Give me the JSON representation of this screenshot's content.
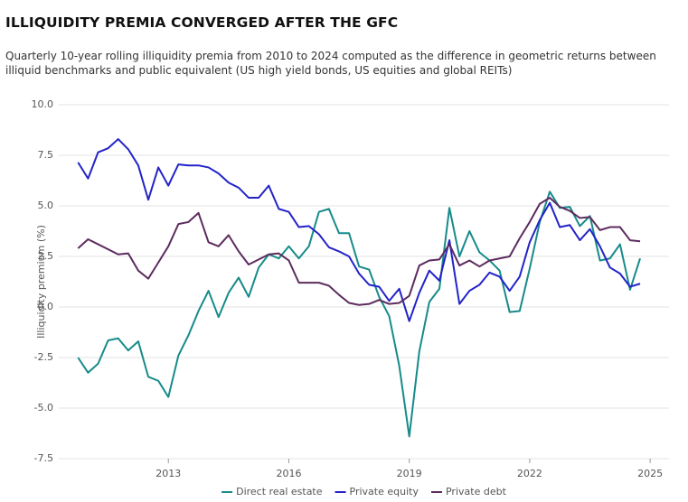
{
  "chart_data": {
    "type": "line",
    "title": "ILLIQUIDITY PREMIA CONVERGED AFTER THE GFC",
    "subtitle": "Quarterly 10-year rolling illiquidity premia from 2010 to 2024 computed as the difference in geometric returns between illiquid benchmarks and public equivalent (US high yield bonds, US equities and global REITs)",
    "y_label": "Illiquidity premium (%)",
    "x": [
      2010.75,
      2011,
      2011.25,
      2011.5,
      2011.75,
      2012,
      2012.25,
      2012.5,
      2012.75,
      2013,
      2013.25,
      2013.5,
      2013.75,
      2014,
      2014.25,
      2014.5,
      2014.75,
      2015,
      2015.25,
      2015.5,
      2015.75,
      2016,
      2016.25,
      2016.5,
      2016.75,
      2017,
      2017.25,
      2017.5,
      2017.75,
      2018,
      2018.25,
      2018.5,
      2018.75,
      2019,
      2019.25,
      2019.5,
      2019.75,
      2020,
      2020.25,
      2020.5,
      2020.75,
      2021,
      2021.25,
      2021.5,
      2021.75,
      2022,
      2022.25,
      2022.5,
      2022.75,
      2023,
      2023.25,
      2023.5,
      2023.75,
      2024,
      2024.25,
      2024.5,
      2024.75
    ],
    "series": [
      {
        "name": "Direct real estate",
        "color": "#178a8a",
        "values": [
          -2.5,
          -3.25,
          -2.8,
          -1.65,
          -1.55,
          -2.15,
          -1.7,
          -3.45,
          -3.65,
          -4.45,
          -2.4,
          -1.4,
          -0.2,
          0.8,
          -0.5,
          0.7,
          1.45,
          0.5,
          1.95,
          2.6,
          2.4,
          3.0,
          2.4,
          3.0,
          4.7,
          4.85,
          3.65,
          3.65,
          2.0,
          1.85,
          0.5,
          -0.45,
          -2.9,
          -6.4,
          -2.2,
          0.25,
          0.9,
          4.9,
          2.5,
          3.75,
          2.7,
          2.3,
          1.8,
          -0.25,
          -0.2,
          1.9,
          4.2,
          5.7,
          4.9,
          4.95,
          4.0,
          4.5,
          2.3,
          2.4,
          3.1,
          0.85,
          2.4
        ]
      },
      {
        "name": "Private equity",
        "color": "#2323c8",
        "values": [
          7.15,
          6.35,
          7.65,
          7.85,
          8.3,
          7.8,
          7.0,
          5.3,
          6.9,
          6.0,
          7.05,
          7.0,
          7.0,
          6.9,
          6.6,
          6.15,
          5.9,
          5.4,
          5.4,
          6.0,
          4.85,
          4.7,
          3.95,
          4.0,
          3.6,
          2.95,
          2.75,
          2.5,
          1.65,
          1.1,
          1.0,
          0.3,
          0.9,
          -0.7,
          0.7,
          1.8,
          1.3,
          3.3,
          0.15,
          0.8,
          1.1,
          1.7,
          1.5,
          0.8,
          1.5,
          3.2,
          4.3,
          5.15,
          3.95,
          4.05,
          3.3,
          3.85,
          3.0,
          1.95,
          1.65,
          1.0,
          1.15
        ]
      },
      {
        "name": "Private debt",
        "color": "#5c2b5e",
        "values": [
          2.9,
          3.35,
          3.1,
          2.85,
          2.6,
          2.65,
          1.8,
          1.4,
          2.2,
          3.0,
          4.1,
          4.2,
          4.65,
          3.2,
          3.0,
          3.55,
          2.75,
          2.1,
          2.35,
          2.6,
          2.65,
          2.3,
          1.2,
          1.2,
          1.2,
          1.05,
          0.6,
          0.2,
          0.1,
          0.15,
          0.35,
          0.15,
          0.2,
          0.55,
          2.05,
          2.3,
          2.35,
          3.1,
          2.05,
          2.3,
          2.0,
          2.3,
          2.4,
          2.5,
          3.4,
          4.2,
          5.1,
          5.4,
          4.95,
          4.75,
          4.4,
          4.45,
          3.8,
          3.95,
          3.95,
          3.3,
          3.25
        ]
      }
    ],
    "xlim": [
      2010.27,
      2025.47
    ],
    "xticks": [
      2013,
      2016,
      2019,
      2022,
      2025
    ],
    "ylim": [
      -7.5,
      10
    ],
    "yticks": [
      {
        "value": 10,
        "label": "10.0"
      },
      7.5,
      {
        "value": 5,
        "label": "5.0"
      },
      2.5,
      {
        "value": 0,
        "label": "0.0"
      },
      -2.5,
      {
        "value": -5,
        "label": "-5.0"
      },
      -7.5
    ],
    "grid": true,
    "legend": "bottom"
  }
}
